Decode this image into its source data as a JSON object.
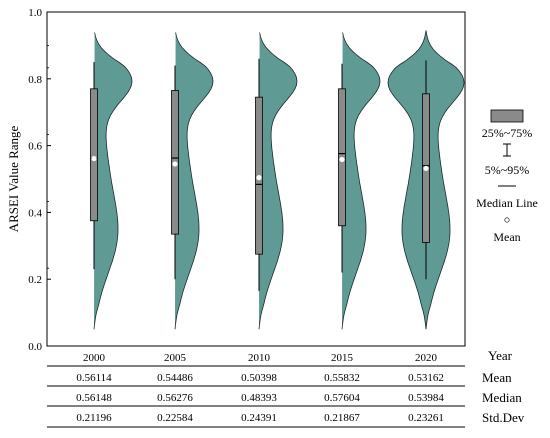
{
  "chart_data": {
    "type": "violin",
    "ylabel": "ARSEI Value Range",
    "ylim": [
      0.0,
      1.0
    ],
    "yticks": [
      "0.0",
      "0.2",
      "0.4",
      "0.6",
      "0.8",
      "1.0"
    ],
    "categories": [
      "2000",
      "2005",
      "2010",
      "2015",
      "2020"
    ],
    "fill_color": "#5f9a95",
    "box_color": "#8a8a8a",
    "violins": [
      {
        "year": "2000",
        "min": 0.05,
        "max": 0.95,
        "whisker_low": 0.23,
        "whisker_high": 0.85,
        "q1": 0.375,
        "q3": 0.77,
        "median": 0.56148,
        "mean": 0.56114
      },
      {
        "year": "2005",
        "min": 0.05,
        "max": 0.95,
        "whisker_low": 0.2,
        "whisker_high": 0.84,
        "q1": 0.335,
        "q3": 0.765,
        "median": 0.56276,
        "mean": 0.54486
      },
      {
        "year": "2010",
        "min": 0.05,
        "max": 0.95,
        "whisker_low": 0.165,
        "whisker_high": 0.86,
        "q1": 0.275,
        "q3": 0.745,
        "median": 0.48393,
        "mean": 0.50398
      },
      {
        "year": "2015",
        "min": 0.05,
        "max": 0.95,
        "whisker_low": 0.22,
        "whisker_high": 0.845,
        "q1": 0.36,
        "q3": 0.77,
        "median": 0.57604,
        "mean": 0.55832
      },
      {
        "year": "2020",
        "min": 0.05,
        "max": 0.945,
        "whisker_low": 0.2,
        "whisker_high": 0.855,
        "q1": 0.31,
        "q3": 0.755,
        "median": 0.53984,
        "mean": 0.53162
      }
    ],
    "legend": {
      "box": "25%~75%",
      "whisker": "5%~95%",
      "median": "Median Line",
      "mean": "Mean"
    },
    "table": {
      "header_label": "Year",
      "rows": [
        {
          "label": "Mean",
          "values": [
            "0.56114",
            "0.54486",
            "0.50398",
            "0.55832",
            "0.53162"
          ]
        },
        {
          "label": "Median",
          "values": [
            "0.56148",
            "0.56276",
            "0.48393",
            "0.57604",
            "0.53984"
          ]
        },
        {
          "label": "Std.Dev",
          "values": [
            "0.21196",
            "0.22584",
            "0.24391",
            "0.21867",
            "0.23261"
          ]
        }
      ]
    }
  }
}
